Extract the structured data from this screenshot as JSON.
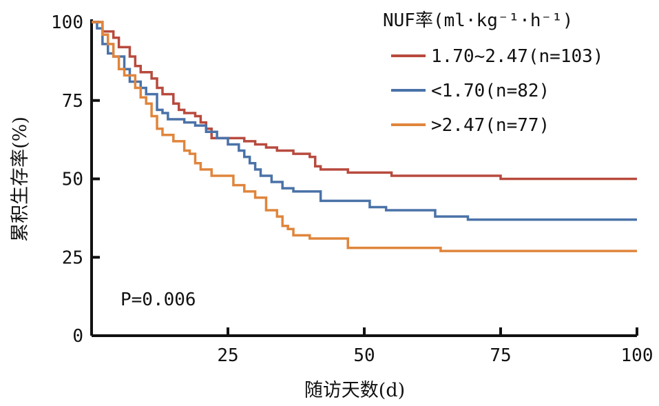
{
  "chart_data": {
    "type": "line",
    "subtype": "kaplan-meier step",
    "title": "",
    "xlabel": "随访天数(d)",
    "ylabel": "累积生存率(%)",
    "xlim": [
      0,
      100
    ],
    "ylim": [
      0,
      100
    ],
    "xticks": [
      25,
      50,
      75,
      100
    ],
    "yticks": [
      0,
      25,
      50,
      75,
      100
    ],
    "grid": false,
    "legend_title": "NUF率(ml·kg⁻¹·h⁻¹)",
    "legend_position": "top-right",
    "annotation": "P=0.006",
    "series": [
      {
        "name": "1.70~2.47(n=103)",
        "color": "#b84a3e",
        "points": [
          [
            0,
            100
          ],
          [
            2,
            97
          ],
          [
            4,
            95
          ],
          [
            5,
            92
          ],
          [
            7,
            89
          ],
          [
            8,
            86
          ],
          [
            9,
            84
          ],
          [
            11,
            82
          ],
          [
            12,
            79
          ],
          [
            13,
            77
          ],
          [
            15,
            74
          ],
          [
            16,
            72
          ],
          [
            17,
            71
          ],
          [
            19,
            70
          ],
          [
            20,
            68
          ],
          [
            21,
            66
          ],
          [
            22,
            63
          ],
          [
            28,
            62
          ],
          [
            30,
            61
          ],
          [
            32,
            60
          ],
          [
            34,
            59
          ],
          [
            37,
            58
          ],
          [
            40,
            57
          ],
          [
            41,
            54
          ],
          [
            42,
            53
          ],
          [
            47,
            52
          ],
          [
            55,
            51
          ],
          [
            75,
            50
          ],
          [
            100,
            50
          ]
        ]
      },
      {
        "name": "<1.70(n=82)",
        "color": "#4a72a8",
        "points": [
          [
            0,
            100
          ],
          [
            1,
            98
          ],
          [
            2,
            93
          ],
          [
            3,
            90
          ],
          [
            4,
            89
          ],
          [
            6,
            85
          ],
          [
            7,
            81
          ],
          [
            9,
            79
          ],
          [
            10,
            77
          ],
          [
            12,
            72
          ],
          [
            13,
            71
          ],
          [
            14,
            69
          ],
          [
            17,
            68
          ],
          [
            19,
            67
          ],
          [
            21,
            65
          ],
          [
            23,
            63
          ],
          [
            25,
            61
          ],
          [
            27,
            59
          ],
          [
            28,
            57
          ],
          [
            29,
            55
          ],
          [
            30,
            53
          ],
          [
            31,
            51
          ],
          [
            33,
            49
          ],
          [
            35,
            47
          ],
          [
            37,
            46
          ],
          [
            42,
            43
          ],
          [
            51,
            41
          ],
          [
            54,
            40
          ],
          [
            63,
            38
          ],
          [
            69,
            37
          ],
          [
            100,
            37
          ]
        ]
      },
      {
        "name": ">2.47(n=77)",
        "color": "#e0853c",
        "points": [
          [
            0,
            100
          ],
          [
            1.5,
            100
          ],
          [
            2,
            96
          ],
          [
            3,
            93
          ],
          [
            4,
            89
          ],
          [
            5,
            85
          ],
          [
            6,
            83
          ],
          [
            8,
            79
          ],
          [
            9,
            76
          ],
          [
            10,
            74
          ],
          [
            11,
            70
          ],
          [
            12,
            66
          ],
          [
            13,
            64
          ],
          [
            15,
            62
          ],
          [
            17,
            59
          ],
          [
            18,
            58
          ],
          [
            19,
            55
          ],
          [
            20,
            53
          ],
          [
            22,
            51
          ],
          [
            26,
            48
          ],
          [
            28,
            46
          ],
          [
            30,
            44
          ],
          [
            32,
            40
          ],
          [
            34,
            38
          ],
          [
            35,
            35
          ],
          [
            36,
            34
          ],
          [
            37,
            32
          ],
          [
            40,
            31
          ],
          [
            47,
            28
          ],
          [
            64,
            27
          ],
          [
            100,
            27
          ]
        ]
      }
    ]
  }
}
